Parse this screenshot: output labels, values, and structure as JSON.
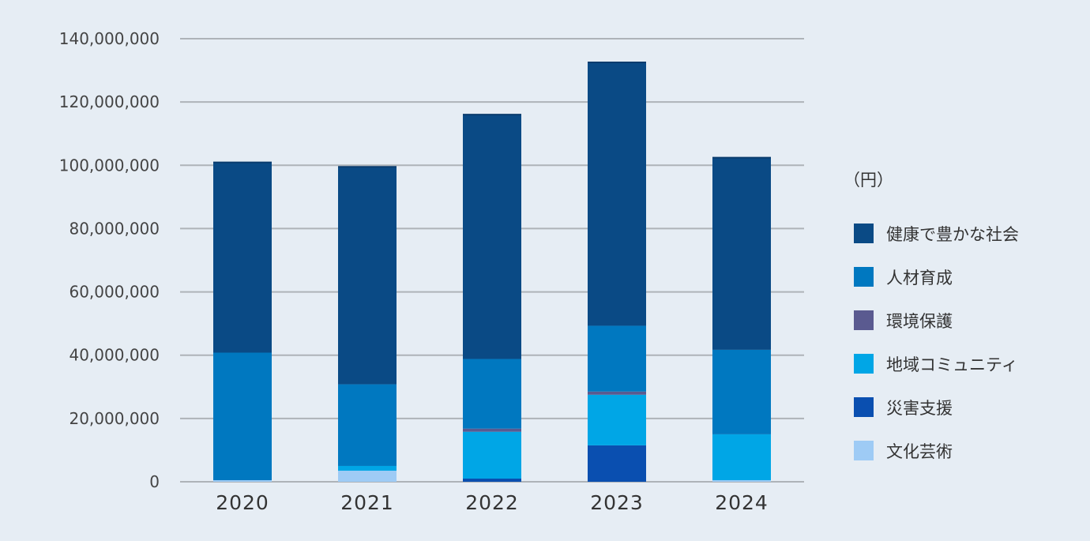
{
  "chart_data": {
    "type": "bar",
    "stacked": true,
    "unit": "（円）",
    "categories": [
      "2020",
      "2021",
      "2022",
      "2023",
      "2024"
    ],
    "ylim": [
      0,
      140000000
    ],
    "yticks": [
      {
        "value": 0,
        "label": "0"
      },
      {
        "value": 20000000,
        "label": "20,000,000"
      },
      {
        "value": 40000000,
        "label": "40,000,000"
      },
      {
        "value": 60000000,
        "label": "60,000,000"
      },
      {
        "value": 80000000,
        "label": "80,000,000"
      },
      {
        "value": 100000000,
        "label": "100,000,000"
      },
      {
        "value": 120000000,
        "label": "120,000,000"
      },
      {
        "value": 140000000,
        "label": "140,000,000"
      }
    ],
    "grid": true,
    "legend_position": "right",
    "series": [
      {
        "name": "文化芸術",
        "color": "#9ecbf5",
        "values": [
          500000,
          3500000,
          0,
          0,
          500000
        ]
      },
      {
        "name": "災害支援",
        "color": "#0a4fb0",
        "values": [
          0,
          0,
          1000000,
          11500000,
          0
        ]
      },
      {
        "name": "地域コミュニティ",
        "color": "#00a6e6",
        "values": [
          0,
          1500000,
          14800000,
          16000000,
          14500000
        ]
      },
      {
        "name": "環境保護",
        "color": "#5a5a90",
        "values": [
          0,
          0,
          1000000,
          1000000,
          0
        ]
      },
      {
        "name": "人材育成",
        "color": "#0078c0",
        "values": [
          40300000,
          25800000,
          22000000,
          20800000,
          26700000
        ]
      },
      {
        "name": "健康で豊かな社会",
        "color": "#0a4a85",
        "values": [
          60100000,
          68700000,
          77200000,
          83200000,
          60700000
        ]
      }
    ],
    "legend_order": [
      "健康で豊かな社会",
      "人材育成",
      "環境保護",
      "地域コミュニティ",
      "災害支援",
      "文化芸術"
    ]
  }
}
